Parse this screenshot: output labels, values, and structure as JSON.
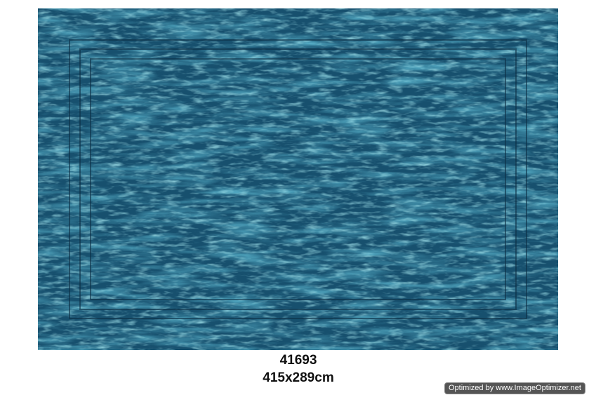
{
  "product": {
    "code": "41693",
    "size": "415x289cm",
    "colors": {
      "base": "#1b5a78",
      "light": "#4fb4c8",
      "dark": "#0d2f45"
    }
  },
  "watermark": "Optimized by www.ImageOptimizer.net"
}
